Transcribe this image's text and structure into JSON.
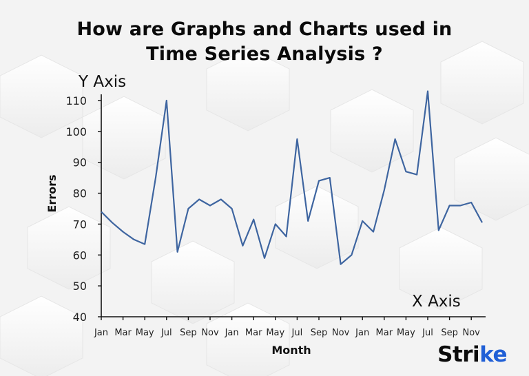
{
  "title_line1": "How are Graphs and Charts used in",
  "title_line2": "Time Series Analysis ?",
  "brand": {
    "text_main": "Stri",
    "text_accent": "ke",
    "accent_color": "#1f5fd6"
  },
  "chart_data": {
    "type": "line",
    "title": "How are Graphs and Charts used in Time Series Analysis ?",
    "y_axis_title": "Y Axis",
    "x_axis_title": "X Axis",
    "ylabel": "Errors",
    "xlabel": "Month",
    "ylim": [
      40,
      112
    ],
    "yticks": [
      40,
      50,
      60,
      70,
      80,
      90,
      100,
      110
    ],
    "xtick_labels": [
      "Jan",
      "Mar",
      "May",
      "Jul",
      "Sep",
      "Nov",
      "Jan",
      "Mar",
      "May",
      "Jul",
      "Sep",
      "Nov",
      "Jan",
      "Mar",
      "May",
      "Jul",
      "Sep",
      "Nov"
    ],
    "line_color": "#3e65a0",
    "series": [
      {
        "name": "Errors",
        "values": [
          74,
          70.5,
          67.5,
          65,
          63.5,
          85,
          110,
          61,
          75,
          78,
          76,
          78,
          75,
          63,
          71.5,
          59,
          70,
          66,
          97.5,
          71,
          84,
          85,
          57,
          60,
          71,
          67.5,
          81,
          97.5,
          87,
          86,
          113,
          68,
          76,
          76,
          77,
          70.5
        ]
      }
    ]
  }
}
